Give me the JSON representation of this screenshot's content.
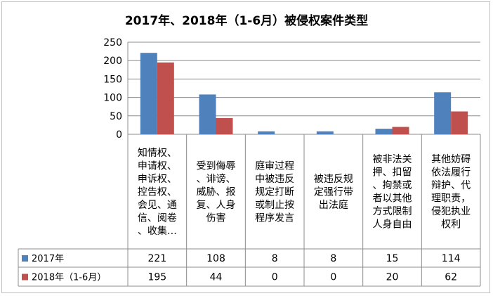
{
  "chart_data": {
    "type": "bar",
    "title": "2017年、2018年（1-6月）被侵权案件类型",
    "categories": [
      [
        "知情权、",
        "申请权、",
        "申诉权、",
        "控告权、",
        "会见、通",
        "信、阅卷",
        "、收集…"
      ],
      [
        "受到侮辱",
        "、诽谤、",
        "威胁、报",
        "复、人身",
        "伤害"
      ],
      [
        "庭审过程",
        "中被违反",
        "规定打断",
        "或制止按",
        "程序发言"
      ],
      [
        "被违反规",
        "定强行带",
        "出法庭"
      ],
      [
        "被非法关",
        "押、扣留",
        "、拘禁或",
        "者以其他",
        "方式限制",
        "人身自由"
      ],
      [
        "其他妨碍",
        "依法履行",
        "辩护、代",
        "理职责，",
        "侵犯执业",
        "权利"
      ]
    ],
    "series": [
      {
        "name": "2017年",
        "color": "#4f81bd",
        "values": [
          221,
          108,
          8,
          8,
          15,
          114
        ]
      },
      {
        "name": "2018年（1-6月）",
        "color": "#c0504d",
        "values": [
          195,
          44,
          0,
          0,
          20,
          62
        ]
      }
    ],
    "ylim": [
      0,
      250
    ],
    "yticks": [
      0,
      50,
      100,
      150,
      200,
      250
    ],
    "grid": true,
    "legend": "data-table-left",
    "xlabel": "",
    "ylabel": ""
  }
}
